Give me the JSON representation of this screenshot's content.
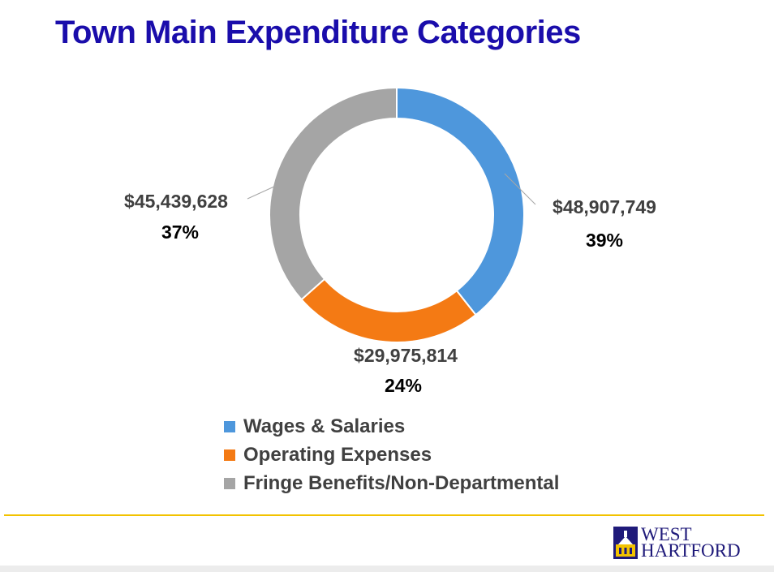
{
  "title": "Town Main Expenditure Categories",
  "chart_data": {
    "type": "pie",
    "subtype": "donut",
    "categories": [
      "Wages & Salaries",
      "Operating Expenses",
      "Fringe Benefits/Non-Departmental"
    ],
    "values": [
      48907749,
      29975814,
      45439628
    ],
    "value_labels": [
      "$48,907,749",
      "$29,975,814",
      "$45,439,628"
    ],
    "percent_labels": [
      "39%",
      "24%",
      "37%"
    ],
    "colors": [
      "#4e97dc",
      "#f47a14",
      "#a5a5a5"
    ],
    "legend_position": "bottom"
  },
  "legend": [
    {
      "label": "Wages & Salaries",
      "color": "#4e97dc"
    },
    {
      "label": "Operating Expenses",
      "color": "#f47a14"
    },
    {
      "label": "Fringe Benefits/Non-Departmental",
      "color": "#a5a5a5"
    }
  ],
  "logo": {
    "line1": "WEST",
    "line2": "HARTFORD",
    "color": "#1f1a7a"
  },
  "accent_color": "#f2c200"
}
